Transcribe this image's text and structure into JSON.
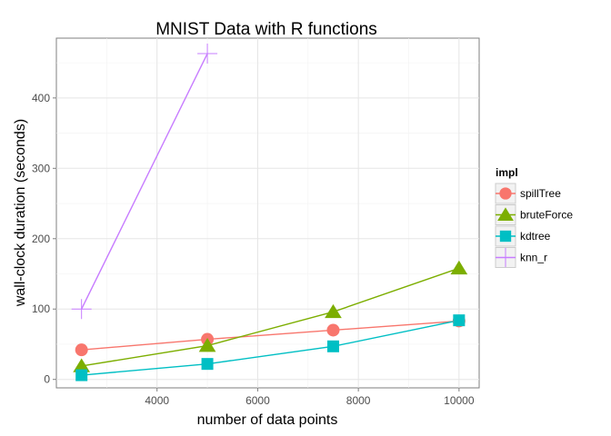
{
  "chart_data": {
    "type": "line",
    "title": "MNIST Data with R functions",
    "xlabel": "number of data points",
    "ylabel": "wall-clock duration (seconds)",
    "xlim": [
      2000,
      10400
    ],
    "ylim": [
      -12,
      485
    ],
    "x_ticks": [
      4000,
      6000,
      8000,
      10000
    ],
    "y_ticks": [
      0,
      100,
      200,
      300,
      400
    ],
    "grid": true,
    "legend": {
      "title": "impl",
      "placement": "right"
    },
    "series": [
      {
        "name": "spillTree",
        "color": "#F8766D",
        "marker": "circle",
        "x": [
          2500,
          5000,
          7500,
          10000
        ],
        "y": [
          42,
          57,
          70,
          83
        ]
      },
      {
        "name": "bruteForce",
        "color": "#7CAE00",
        "marker": "triangle",
        "x": [
          2500,
          5000,
          7500,
          10000
        ],
        "y": [
          19,
          48,
          96,
          158
        ]
      },
      {
        "name": "kdtree",
        "color": "#00BFC4",
        "marker": "square",
        "x": [
          2500,
          5000,
          7500,
          10000
        ],
        "y": [
          6,
          22,
          47,
          84
        ]
      },
      {
        "name": "knn_r",
        "color": "#C77CFF",
        "marker": "plus",
        "x": [
          2500,
          5000
        ],
        "y": [
          100,
          463
        ]
      }
    ]
  }
}
